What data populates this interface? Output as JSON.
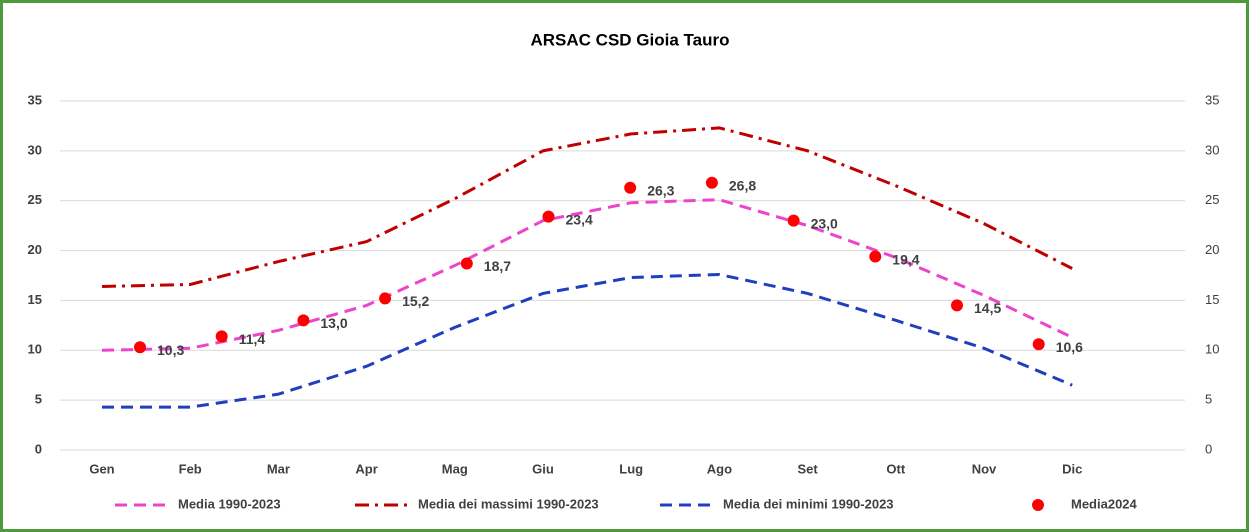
{
  "chart_data": {
    "type": "line",
    "title": "ARSAC CSD Gioia Tauro",
    "categories": [
      "Gen",
      "Feb",
      "Mar",
      "Apr",
      "Mag",
      "Giu",
      "Lug",
      "Ago",
      "Set",
      "Ott",
      "Nov",
      "Dic"
    ],
    "ylim": [
      0,
      35
    ],
    "yticks": [
      0,
      5,
      10,
      15,
      20,
      25,
      30,
      35
    ],
    "y2lim": [
      0,
      35
    ],
    "y2ticks": [
      0,
      5,
      10,
      15,
      20,
      25,
      30,
      35
    ],
    "grid": true,
    "legend": "bottom",
    "series": [
      {
        "name": "Media 1990-2023",
        "color": "#ee44cc",
        "style": "dashed",
        "values": [
          10.0,
          10.2,
          12.0,
          14.5,
          18.5,
          23.0,
          24.8,
          25.1,
          22.5,
          19.3,
          15.5,
          11.3
        ]
      },
      {
        "name": "Media dei massimi 1990-2023",
        "color": "#c00000",
        "style": "dashdot",
        "values": [
          16.4,
          16.6,
          18.9,
          20.9,
          25.2,
          30.0,
          31.7,
          32.3,
          30.0,
          26.5,
          22.7,
          18.2
        ]
      },
      {
        "name": "Media dei minimi 1990-2023",
        "color": "#1f3fbf",
        "style": "dashed",
        "values": [
          4.3,
          4.3,
          5.6,
          8.4,
          12.3,
          15.7,
          17.3,
          17.6,
          15.7,
          13.0,
          10.2,
          6.5
        ]
      },
      {
        "name": "Media2024",
        "color": "#ff0000",
        "style": "markers",
        "axis": "y2",
        "values": [
          10.3,
          11.4,
          13.0,
          15.2,
          18.7,
          23.4,
          26.3,
          26.8,
          23.0,
          19.4,
          14.5,
          10.6
        ],
        "value_labels": [
          "10,3",
          "11,4",
          "13,0",
          "15,2",
          "18,7",
          "23,4",
          "26,3",
          "26,8",
          "23,0",
          "19,4",
          "14,5",
          "10,6"
        ]
      }
    ]
  }
}
